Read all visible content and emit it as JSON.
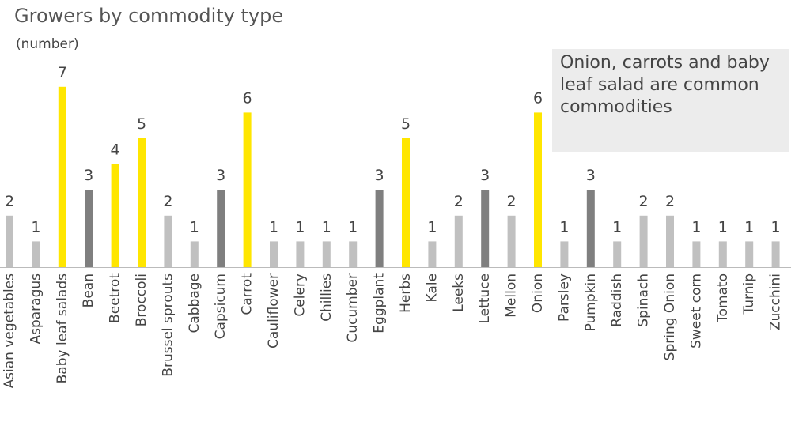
{
  "chart_data": {
    "type": "bar",
    "title": "Growers by commodity type",
    "subtitle": "(number)",
    "annotation": "Onion, carrots and baby leaf salad are common commodities",
    "categories": [
      "Asian vegetables",
      "Asparagus",
      "Baby leaf salads",
      "Bean",
      "Beetrot",
      "Broccoli",
      "Brussel sprouts",
      "Cabbage",
      "Capsicum",
      "Carrot",
      "Cauliflower",
      "Celery",
      "Chillies",
      "Cucumber",
      "Eggplant",
      "Herbs",
      "Kale",
      "Leeks",
      "Lettuce",
      "Mellon",
      "Onion",
      "Parsley",
      "Pumpkin",
      "Raddish",
      "Spinach",
      "Spring Onion",
      "Sweet corn",
      "Tomato",
      "Turnip",
      "Zucchini"
    ],
    "values": [
      2,
      1,
      7,
      3,
      4,
      5,
      2,
      1,
      3,
      6,
      1,
      1,
      1,
      1,
      3,
      5,
      1,
      2,
      3,
      2,
      6,
      1,
      3,
      1,
      2,
      2,
      1,
      1,
      1,
      1
    ],
    "colors": [
      "#c0c0c0",
      "#c0c0c0",
      "#ffe600",
      "#7f7f7f",
      "#ffe600",
      "#ffe600",
      "#c0c0c0",
      "#c0c0c0",
      "#7f7f7f",
      "#ffe600",
      "#c0c0c0",
      "#c0c0c0",
      "#c0c0c0",
      "#c0c0c0",
      "#7f7f7f",
      "#ffe600",
      "#c0c0c0",
      "#c0c0c0",
      "#7f7f7f",
      "#c0c0c0",
      "#ffe600",
      "#c0c0c0",
      "#7f7f7f",
      "#c0c0c0",
      "#c0c0c0",
      "#c0c0c0",
      "#c0c0c0",
      "#c0c0c0",
      "#c0c0c0",
      "#c0c0c0"
    ]
  }
}
